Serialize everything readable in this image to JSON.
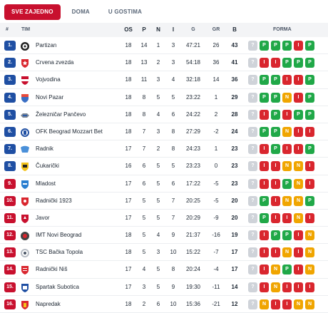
{
  "tabs": [
    {
      "label": "SVE ZAJEDNO",
      "active": true
    },
    {
      "label": "DOMA",
      "active": false
    },
    {
      "label": "U GOSTIMA",
      "active": false
    }
  ],
  "header": {
    "rank": "#",
    "team": "TIM",
    "played": "OS",
    "won": "P",
    "draw": "N",
    "lost": "I",
    "goals": "G",
    "diff": "GR",
    "points": "B",
    "form": "FORMA"
  },
  "colors": {
    "blue_rank": "#1f4fa3",
    "red_rank": "#c8102e",
    "win": "#20a848",
    "draw": "#f0a500",
    "loss": "#d9262e"
  },
  "rows": [
    {
      "rank": "1.",
      "zone": "blue",
      "team": "Partizan",
      "crest": "partizan",
      "os": "18",
      "p": "14",
      "n": "1",
      "i": "3",
      "g": "47:21",
      "gr": "26",
      "b": "43",
      "form": [
        "?",
        "P",
        "P",
        "P",
        "I",
        "P"
      ]
    },
    {
      "rank": "2.",
      "zone": "blue",
      "team": "Crvena zvezda",
      "crest": "zvezda",
      "os": "18",
      "p": "13",
      "n": "2",
      "i": "3",
      "g": "54:18",
      "gr": "36",
      "b": "41",
      "form": [
        "?",
        "I",
        "I",
        "P",
        "P",
        "P"
      ]
    },
    {
      "rank": "3.",
      "zone": "blue",
      "team": "Vojvodina",
      "crest": "vojvodina",
      "os": "18",
      "p": "11",
      "n": "3",
      "i": "4",
      "g": "32:18",
      "gr": "14",
      "b": "36",
      "form": [
        "?",
        "P",
        "P",
        "I",
        "I",
        "P"
      ]
    },
    {
      "rank": "4.",
      "zone": "blue",
      "team": "Novi Pazar",
      "crest": "novipazar",
      "os": "18",
      "p": "8",
      "n": "5",
      "i": "5",
      "g": "23:22",
      "gr": "1",
      "b": "29",
      "form": [
        "?",
        "P",
        "P",
        "N",
        "I",
        "P"
      ]
    },
    {
      "rank": "5.",
      "zone": "blue",
      "team": "Železničar Pančevo",
      "crest": "zeleznicar",
      "os": "18",
      "p": "8",
      "n": "4",
      "i": "6",
      "g": "24:22",
      "gr": "2",
      "b": "28",
      "form": [
        "?",
        "I",
        "P",
        "I",
        "P",
        "P"
      ]
    },
    {
      "rank": "6.",
      "zone": "blue",
      "team": "OFK Beograd Mozzart Bet",
      "crest": "ofk",
      "os": "18",
      "p": "7",
      "n": "3",
      "i": "8",
      "g": "27:29",
      "gr": "-2",
      "b": "24",
      "form": [
        "?",
        "P",
        "P",
        "N",
        "I",
        "I"
      ]
    },
    {
      "rank": "7.",
      "zone": "blue",
      "team": "Radnik",
      "crest": "radnik",
      "os": "17",
      "p": "7",
      "n": "2",
      "i": "8",
      "g": "24:23",
      "gr": "1",
      "b": "23",
      "form": [
        "?",
        "I",
        "P",
        "I",
        "I",
        "P"
      ]
    },
    {
      "rank": "8.",
      "zone": "blue",
      "team": "Čukarički",
      "crest": "cukaricki",
      "os": "16",
      "p": "6",
      "n": "5",
      "i": "5",
      "g": "23:23",
      "gr": "0",
      "b": "23",
      "form": [
        "?",
        "I",
        "I",
        "N",
        "N",
        "I"
      ]
    },
    {
      "rank": "9.",
      "zone": "red",
      "team": "Mladost",
      "crest": "mladost",
      "os": "17",
      "p": "6",
      "n": "5",
      "i": "6",
      "g": "17:22",
      "gr": "-5",
      "b": "23",
      "form": [
        "?",
        "I",
        "I",
        "P",
        "N",
        "I"
      ]
    },
    {
      "rank": "10.",
      "zone": "red",
      "team": "Radnički 1923",
      "crest": "radnicki1923",
      "os": "17",
      "p": "5",
      "n": "5",
      "i": "7",
      "g": "20:25",
      "gr": "-5",
      "b": "20",
      "form": [
        "?",
        "P",
        "I",
        "N",
        "N",
        "P"
      ]
    },
    {
      "rank": "11.",
      "zone": "red",
      "team": "Javor",
      "crest": "javor",
      "os": "17",
      "p": "5",
      "n": "5",
      "i": "7",
      "g": "20:29",
      "gr": "-9",
      "b": "20",
      "form": [
        "?",
        "P",
        "I",
        "I",
        "N",
        "I"
      ]
    },
    {
      "rank": "12.",
      "zone": "red",
      "team": "IMT Novi Beograd",
      "crest": "imt",
      "os": "18",
      "p": "5",
      "n": "4",
      "i": "9",
      "g": "21:37",
      "gr": "-16",
      "b": "19",
      "form": [
        "?",
        "I",
        "P",
        "P",
        "I",
        "N"
      ]
    },
    {
      "rank": "13.",
      "zone": "red",
      "team": "TSC Bačka Topola",
      "crest": "tsc",
      "os": "18",
      "p": "5",
      "n": "3",
      "i": "10",
      "g": "15:22",
      "gr": "-7",
      "b": "17",
      "form": [
        "?",
        "I",
        "I",
        "N",
        "I",
        "N"
      ]
    },
    {
      "rank": "14.",
      "zone": "red",
      "team": "Radnički Niš",
      "crest": "radnickinis",
      "os": "17",
      "p": "4",
      "n": "5",
      "i": "8",
      "g": "20:24",
      "gr": "-4",
      "b": "17",
      "form": [
        "?",
        "I",
        "N",
        "P",
        "I",
        "N"
      ]
    },
    {
      "rank": "15.",
      "zone": "red",
      "team": "Spartak Subotica",
      "crest": "spartak",
      "os": "17",
      "p": "3",
      "n": "5",
      "i": "9",
      "g": "19:30",
      "gr": "-11",
      "b": "14",
      "form": [
        "?",
        "I",
        "N",
        "I",
        "I",
        "I"
      ]
    },
    {
      "rank": "16.",
      "zone": "red",
      "team": "Napredak",
      "crest": "napredak",
      "os": "18",
      "p": "2",
      "n": "6",
      "i": "10",
      "g": "15:36",
      "gr": "-21",
      "b": "12",
      "form": [
        "?",
        "N",
        "I",
        "I",
        "N",
        "N"
      ]
    }
  ]
}
